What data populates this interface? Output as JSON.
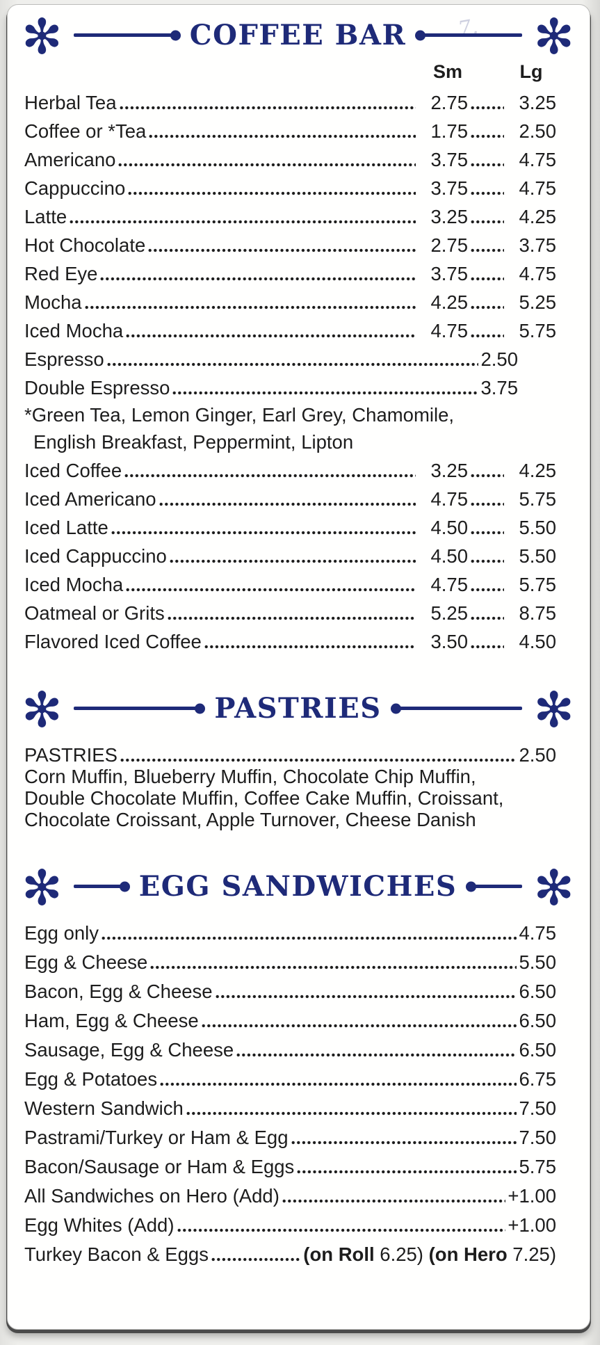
{
  "page": {
    "accent_color": "#1e2a78",
    "text_color": "#1d1d1d",
    "card_color": "#fffffe",
    "background_color": "#e9e9e6"
  },
  "artifact": "7.",
  "decor": {
    "flower": "✻"
  },
  "columns": {
    "sm": "Sm",
    "lg": "Lg"
  },
  "sections": [
    {
      "title": "COFFEE BAR",
      "show_size_header": true,
      "row_class": "c-rows",
      "items": [
        {
          "name": "Herbal Tea",
          "sm": "2.75",
          "lg": "3.25"
        },
        {
          "name": "Coffee or *Tea",
          "sm": "1.75",
          "lg": "2.50"
        },
        {
          "name": "Americano",
          "sm": "3.75",
          "lg": "4.75"
        },
        {
          "name": "Cappuccino",
          "sm": "3.75",
          "lg": "4.75"
        },
        {
          "name": "Latte",
          "sm": "3.25",
          "lg": "4.25"
        },
        {
          "name": "Hot Chocolate",
          "sm": "2.75",
          "lg": "3.75"
        },
        {
          "name": "Red Eye",
          "sm": "3.75",
          "lg": "4.75"
        },
        {
          "name": "Mocha",
          "sm": "4.25",
          "lg": "5.25"
        },
        {
          "name": "Iced Mocha",
          "sm": "4.75",
          "lg": "5.75"
        },
        {
          "name": "Espresso",
          "price": "2.50",
          "price_inset": true
        },
        {
          "name": "Double Espresso",
          "price": "3.75",
          "price_inset": true
        },
        {
          "note": "*Green Tea, Lemon Ginger, Earl Grey, Chamomile,"
        },
        {
          "note": "English Breakfast, Peppermint, Lipton",
          "indent": true
        },
        {
          "name": "Iced Coffee",
          "sm": "3.25",
          "lg": "4.25"
        },
        {
          "name": "Iced Americano",
          "sm": "4.75",
          "lg": "5.75"
        },
        {
          "name": "Iced Latte",
          "sm": "4.50",
          "lg": "5.50"
        },
        {
          "name": "Iced Cappuccino",
          "sm": "4.50",
          "lg": "5.50"
        },
        {
          "name": "Iced Mocha",
          "sm": "4.75",
          "lg": "5.75"
        },
        {
          "name": "Oatmeal or Grits",
          "sm": "5.25",
          "lg": "8.75"
        },
        {
          "name": "Flavored Iced Coffee",
          "sm": "3.50",
          "lg": "4.50"
        }
      ]
    },
    {
      "title": "PASTRIES",
      "show_size_header": false,
      "row_class": "p-rows",
      "items": [
        {
          "name": "PASTRIES",
          "price": "2.50"
        },
        {
          "note": "Corn Muffin, Blueberry Muffin, Chocolate Chip Muffin,"
        },
        {
          "note": "Double Chocolate Muffin, Coffee Cake Muffin, Croissant,"
        },
        {
          "note": "Chocolate Croissant, Apple Turnover, Cheese Danish"
        }
      ]
    },
    {
      "title": "EGG SANDWICHES",
      "show_size_header": false,
      "row_class": "e-rows",
      "items": [
        {
          "name": "Egg only",
          "price": "4.75"
        },
        {
          "name": "Egg & Cheese",
          "price": "5.50"
        },
        {
          "name": "Bacon, Egg & Cheese",
          "price": "6.50"
        },
        {
          "name": "Ham, Egg & Cheese",
          "price": "6.50"
        },
        {
          "name": "Sausage, Egg & Cheese",
          "price": "6.50"
        },
        {
          "name": "Egg & Potatoes",
          "price": "6.75"
        },
        {
          "name": "Western Sandwich",
          "price": "7.50"
        },
        {
          "name": "Pastrami/Turkey or Ham & Egg",
          "price": "7.50"
        },
        {
          "name": "Bacon/Sausage or Ham & Eggs",
          "price": "5.75"
        },
        {
          "name": "All Sandwiches on Hero (Add)",
          "price": "+1.00"
        },
        {
          "name": "Egg Whites (Add)",
          "price": "+1.00"
        },
        {
          "name": "Turkey Bacon & Eggs",
          "price_segments": [
            {
              "text": "(on Roll",
              "bold": true
            },
            {
              "text": " 6.25) ",
              "bold": false
            },
            {
              "text": "(on Hero",
              "bold": true
            },
            {
              "text": " 7.25)",
              "bold": false
            }
          ]
        }
      ]
    }
  ]
}
